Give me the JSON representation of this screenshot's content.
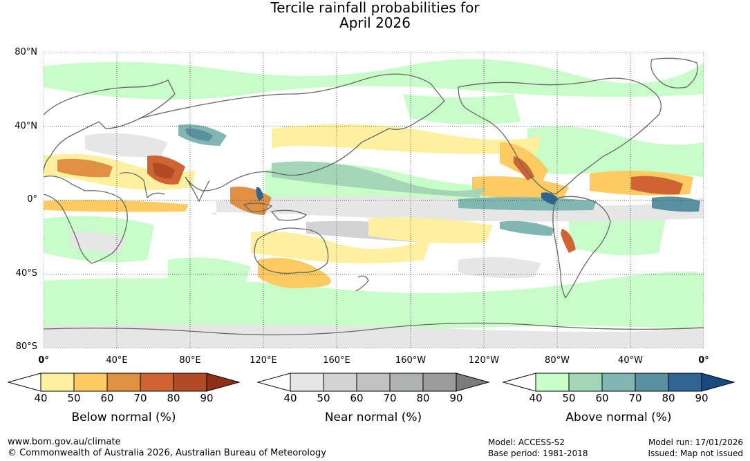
{
  "title": {
    "line1": "Tercile rainfall probabilities for",
    "line2": "April 2026"
  },
  "lat_labels": [
    "80°N",
    "40°N",
    "0°",
    "40°S",
    "80°S"
  ],
  "lon_labels": [
    "0°",
    "40°E",
    "80°E",
    "120°E",
    "160°E",
    "160°W",
    "120°W",
    "80°W",
    "40°W",
    "0°"
  ],
  "colorbars": [
    {
      "label": "Below normal (%)",
      "ticks": [
        "40",
        "50",
        "60",
        "70",
        "80",
        "90"
      ],
      "colors": [
        "#fff0a0",
        "#fecb63",
        "#e09043",
        "#cd6431",
        "#b24a27",
        "#8e2f18"
      ]
    },
    {
      "label": "Near normal (%)",
      "ticks": [
        "40",
        "50",
        "60",
        "70",
        "80",
        "90"
      ],
      "colors": [
        "#e6e6e6",
        "#d3d3d3",
        "#c2c2c2",
        "#adb3b0",
        "#9c9c9c",
        "#7c7c7c"
      ]
    },
    {
      "label": "Above normal (%)",
      "ticks": [
        "40",
        "50",
        "60",
        "70",
        "80",
        "90"
      ],
      "colors": [
        "#c8fcc8",
        "#a3d6b6",
        "#82b6b2",
        "#5a91a0",
        "#306592",
        "#184a80"
      ]
    }
  ],
  "footer": {
    "url": "www.bom.gov.au/climate",
    "copyright": "© Commonwealth of Australia 2026, Australian Bureau of Meteorology",
    "model": "Model: ACCESS-S2",
    "base_period": "Base period: 1981-2018",
    "model_run": "Model run: 17/01/2026",
    "issued": "Issued: Map not issued"
  }
}
